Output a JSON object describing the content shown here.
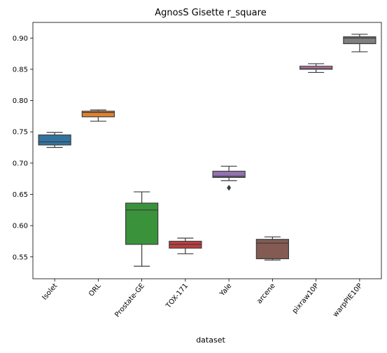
{
  "chart_data": {
    "type": "box",
    "title": "AgnosS Gisette r_square",
    "xlabel": "dataset",
    "ylabel": "",
    "ylim": [
      0.515,
      0.925
    ],
    "yticks": [
      0.55,
      0.6,
      0.65,
      0.7,
      0.75,
      0.8,
      0.85,
      0.9
    ],
    "ytick_labels": [
      "0.55",
      "0.60",
      "0.65",
      "0.70",
      "0.75",
      "0.80",
      "0.85",
      "0.90"
    ],
    "grid": false,
    "categories": [
      "Isolet",
      "ORL",
      "Prostate-GE",
      "TOX-171",
      "Yale",
      "arcene",
      "pixraw10P",
      "warpPIE10P"
    ],
    "boxes": [
      {
        "category": "Isolet",
        "color": "#3274a1",
        "whisker_low": 0.725,
        "q1": 0.729,
        "median": 0.734,
        "q3": 0.745,
        "whisker_high": 0.749,
        "outliers": []
      },
      {
        "category": "ORL",
        "color": "#e1812c",
        "whisker_low": 0.767,
        "q1": 0.774,
        "median": 0.781,
        "q3": 0.783,
        "whisker_high": 0.785,
        "outliers": []
      },
      {
        "category": "Prostate-GE",
        "color": "#3a923a",
        "whisker_low": 0.535,
        "q1": 0.57,
        "median": 0.625,
        "q3": 0.636,
        "whisker_high": 0.654,
        "outliers": []
      },
      {
        "category": "TOX-171",
        "color": "#c03d3e",
        "whisker_low": 0.555,
        "q1": 0.564,
        "median": 0.57,
        "q3": 0.575,
        "whisker_high": 0.58,
        "outliers": []
      },
      {
        "category": "Yale",
        "color": "#9372b2",
        "whisker_low": 0.672,
        "q1": 0.677,
        "median": 0.679,
        "q3": 0.687,
        "whisker_high": 0.695,
        "outliers": [
          0.66,
          0.661
        ]
      },
      {
        "category": "arcene",
        "color": "#845b53",
        "whisker_low": 0.545,
        "q1": 0.547,
        "median": 0.572,
        "q3": 0.578,
        "whisker_high": 0.582,
        "outliers": []
      },
      {
        "category": "pixraw10P",
        "color": "#d684bd",
        "whisker_low": 0.845,
        "q1": 0.85,
        "median": 0.852,
        "q3": 0.855,
        "whisker_high": 0.859,
        "outliers": []
      },
      {
        "category": "warpPIE10P",
        "color": "#7f7f7f",
        "whisker_low": 0.878,
        "q1": 0.891,
        "median": 0.9,
        "q3": 0.902,
        "whisker_high": 0.906,
        "outliers": []
      }
    ]
  }
}
